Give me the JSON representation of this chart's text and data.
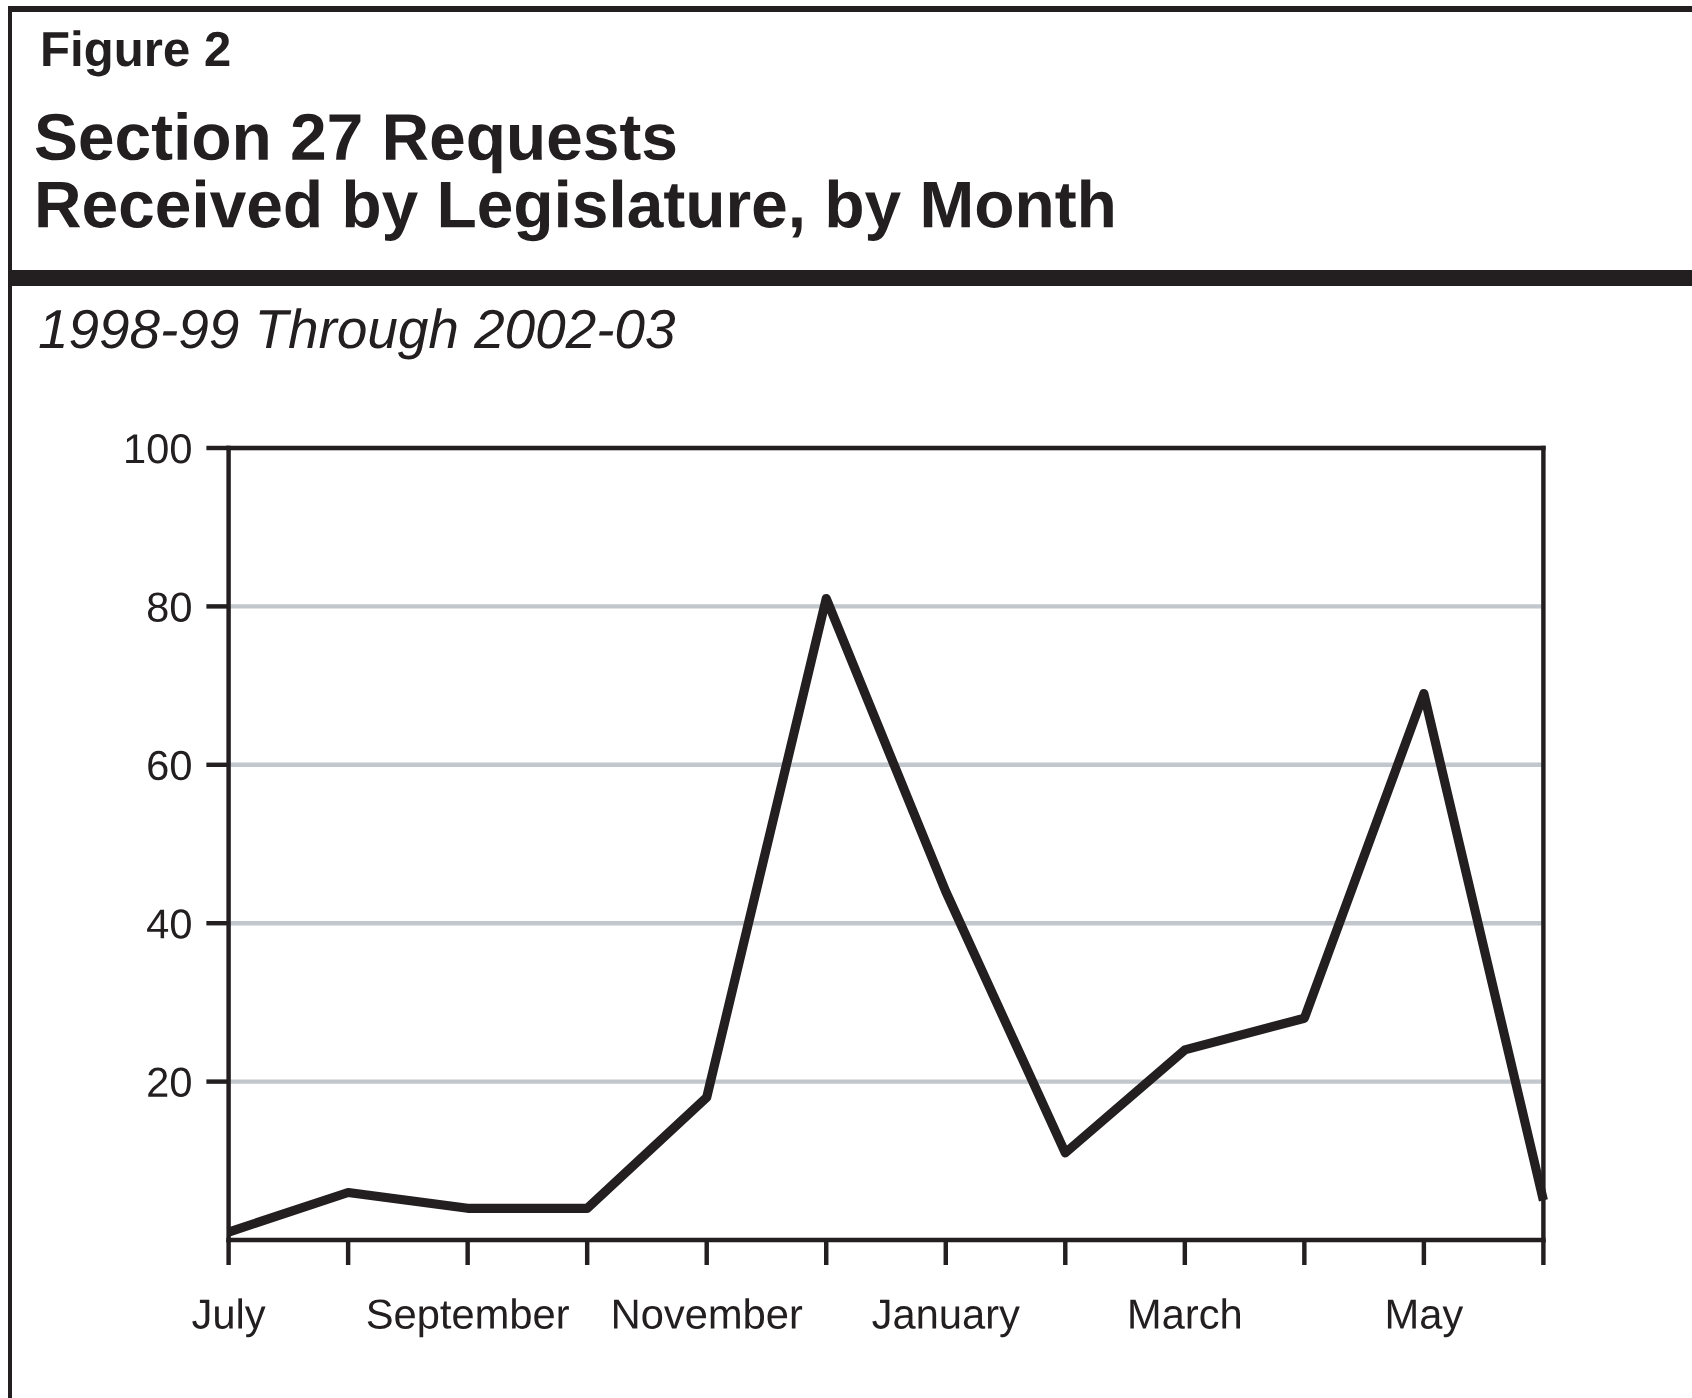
{
  "chart_data": {
    "type": "line",
    "title": "Section 27 Requests\nReceived by Legislature, by Month",
    "subtitle": "1998-99 Through 2002-03",
    "annotations": [
      "Figure 2"
    ],
    "categories": [
      "July",
      null,
      "September",
      null,
      "November",
      null,
      "January",
      null,
      "March",
      null,
      "May",
      null
    ],
    "series": [
      {
        "color": "#231f20",
        "values": [
          1,
          6,
          4,
          4,
          18,
          81,
          44,
          11,
          24,
          28,
          69,
          5
        ]
      }
    ],
    "ylim": [
      0,
      100
    ],
    "yticks": [
      20,
      40,
      60,
      80,
      100
    ],
    "grid": "y",
    "line_style": "solid"
  }
}
